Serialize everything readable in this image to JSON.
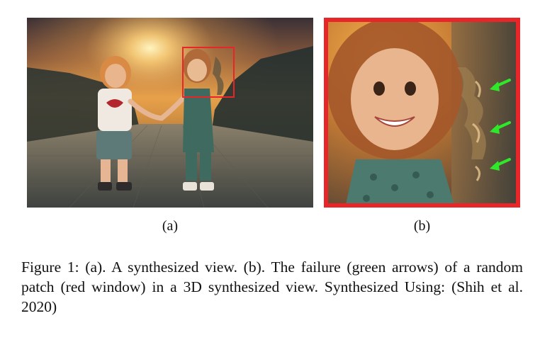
{
  "figure": {
    "subfigure_a_label": "(a)",
    "subfigure_b_label": "(b)",
    "caption": "Figure 1: (a). A synthesized view. (b). The failure (green arrows) of a random patch (red window) in a 3D synthesized view. Synthesized Using: (Shih et al. 2020)"
  },
  "colors": {
    "window_red": "#e8262a",
    "arrow_green": "#2fe82a",
    "sky_top": "#3a3138",
    "sun_glow": "#ffc75a"
  }
}
